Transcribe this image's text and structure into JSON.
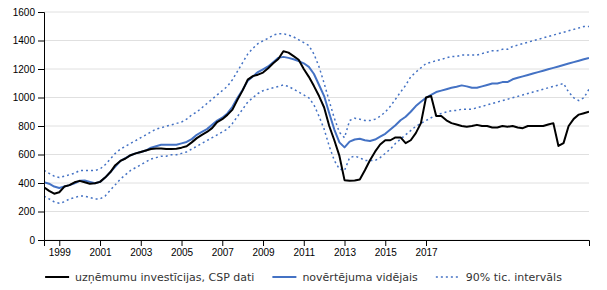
{
  "chart_data": {
    "type": "line",
    "x": [
      1998.25,
      1998.5,
      1998.75,
      1999,
      1999.25,
      1999.5,
      1999.75,
      2000,
      2000.25,
      2000.5,
      2000.75,
      2001,
      2001.25,
      2001.5,
      2001.75,
      2002,
      2002.25,
      2002.5,
      2002.75,
      2003,
      2003.25,
      2003.5,
      2003.75,
      2004,
      2004.25,
      2004.5,
      2004.75,
      2005,
      2005.25,
      2005.5,
      2005.75,
      2006,
      2006.25,
      2006.5,
      2006.75,
      2007,
      2007.25,
      2007.5,
      2007.75,
      2008,
      2008.25,
      2008.5,
      2008.75,
      2009,
      2009.25,
      2009.5,
      2009.75,
      2010,
      2010.25,
      2010.5,
      2010.75,
      2011,
      2011.25,
      2011.5,
      2011.75,
      2012,
      2012.25,
      2012.5,
      2012.75,
      2013,
      2013.25,
      2013.5,
      2013.75,
      2014,
      2014.25,
      2014.5,
      2014.75,
      2015,
      2015.25,
      2015.5,
      2015.75,
      2016,
      2016.25,
      2016.5,
      2016.75,
      2017,
      2017.25,
      2017.5,
      2017.75,
      2018,
      2018.25,
      2018.5,
      2018.75,
      2019,
      2019.25,
      2019.5,
      2019.75,
      2020,
      2020.25,
      2020.5,
      2020.75,
      2021,
      2021.25,
      2021.5,
      2021.75,
      2022,
      2022.25,
      2022.5,
      2022.75,
      2023,
      2023.25,
      2023.5,
      2023.75,
      2024,
      2024.25,
      2024.5,
      2024.75,
      2025
    ],
    "series": [
      {
        "name": "uzņēmumu investīcijas, CSP dati",
        "color": "#000000",
        "line_style": "solid",
        "values": [
          370,
          345,
          325,
          335,
          375,
          385,
          405,
          415,
          405,
          395,
          398,
          408,
          438,
          475,
          525,
          555,
          572,
          595,
          608,
          618,
          628,
          638,
          642,
          642,
          638,
          638,
          640,
          648,
          658,
          685,
          715,
          738,
          758,
          785,
          828,
          848,
          878,
          915,
          985,
          1050,
          1125,
          1150,
          1160,
          1175,
          1205,
          1240,
          1270,
          1325,
          1315,
          1290,
          1265,
          1200,
          1145,
          1080,
          1010,
          930,
          800,
          700,
          590,
          420,
          415,
          418,
          425,
          490,
          560,
          620,
          670,
          700,
          700,
          720,
          720,
          680,
          700,
          750,
          820,
          1000,
          1010,
          870,
          870,
          840,
          820,
          810,
          800,
          795,
          800,
          808,
          800,
          800,
          790,
          790,
          800,
          795,
          800,
          790,
          785,
          800,
          800,
          800,
          800,
          810,
          820,
          660,
          680,
          800,
          850,
          880,
          890,
          900
        ]
      },
      {
        "name": "novērtējuma vidējais",
        "color": "#4472C4",
        "line_style": "solid",
        "values": [
          405,
          395,
          375,
          365,
          375,
          385,
          398,
          415,
          418,
          408,
          398,
          408,
          438,
          475,
          515,
          555,
          575,
          595,
          608,
          618,
          628,
          648,
          658,
          668,
          668,
          668,
          668,
          678,
          688,
          708,
          738,
          758,
          778,
          808,
          838,
          858,
          888,
          935,
          998,
          1055,
          1118,
          1148,
          1178,
          1198,
          1218,
          1248,
          1278,
          1285,
          1278,
          1268,
          1255,
          1240,
          1215,
          1165,
          1088,
          1010,
          890,
          775,
          685,
          650,
          690,
          705,
          710,
          700,
          695,
          705,
          725,
          745,
          775,
          805,
          840,
          865,
          900,
          940,
          970,
          998,
          1018,
          1038,
          1048,
          1058,
          1068,
          1075,
          1085,
          1078,
          1068,
          1068,
          1078,
          1088,
          1098,
          1098,
          1108,
          1108,
          1128,
          1138,
          1148,
          1158,
          1168,
          1178,
          1188,
          1198,
          1208,
          1218,
          1228,
          1238,
          1248,
          1258,
          1268,
          1278
        ]
      },
      {
        "name": "90% tic. intervāls",
        "color": "#4472C4",
        "line_style": "dotted",
        "upper": [
          488,
          468,
          448,
          438,
          448,
          458,
          468,
          488,
          488,
          488,
          488,
          498,
          528,
          568,
          608,
          638,
          658,
          678,
          698,
          718,
          738,
          758,
          778,
          788,
          798,
          808,
          818,
          828,
          848,
          878,
          898,
          928,
          958,
          988,
          1018,
          1048,
          1078,
          1125,
          1185,
          1245,
          1305,
          1345,
          1378,
          1398,
          1415,
          1438,
          1448,
          1448,
          1438,
          1425,
          1405,
          1385,
          1365,
          1305,
          1215,
          1100,
          975,
          855,
          755,
          718,
          838,
          855,
          848,
          838,
          838,
          848,
          868,
          898,
          938,
          988,
          1038,
          1085,
          1145,
          1178,
          1208,
          1238,
          1248,
          1258,
          1268,
          1278,
          1288,
          1288,
          1298,
          1298,
          1298,
          1298,
          1308,
          1318,
          1328,
          1328,
          1338,
          1338,
          1358,
          1368,
          1378,
          1388,
          1398,
          1408,
          1418,
          1428,
          1438,
          1448,
          1458,
          1468,
          1478,
          1488,
          1498,
          1498
        ],
        "lower": [
          308,
          288,
          268,
          258,
          268,
          288,
          298,
          308,
          308,
          298,
          288,
          288,
          308,
          348,
          388,
          428,
          458,
          488,
          508,
          528,
          548,
          568,
          578,
          588,
          588,
          598,
          598,
          608,
          618,
          638,
          658,
          678,
          698,
          718,
          738,
          758,
          778,
          818,
          868,
          918,
          968,
          998,
          1028,
          1048,
          1058,
          1068,
          1078,
          1088,
          1078,
          1058,
          1038,
          1018,
          998,
          948,
          868,
          778,
          658,
          558,
          498,
          488,
          578,
          588,
          578,
          558,
          558,
          558,
          578,
          608,
          638,
          678,
          708,
          738,
          768,
          798,
          818,
          838,
          858,
          878,
          888,
          898,
          908,
          908,
          918,
          918,
          918,
          928,
          938,
          948,
          958,
          968,
          978,
          988,
          998,
          1008,
          1018,
          1028,
          1038,
          1048,
          1058,
          1068,
          1078,
          1088,
          1098,
          1038,
          998,
          978,
          998,
          1058
        ]
      }
    ],
    "xlim": [
      1998.25,
      2025
    ],
    "xticks": [
      1999,
      2001,
      2003,
      2005,
      2007,
      2009,
      2011,
      2013,
      2015,
      2017
    ],
    "ylim": [
      0,
      1600
    ],
    "yticks": [
      0,
      200,
      400,
      600,
      800,
      1000,
      1200,
      1400,
      1600
    ],
    "grid": true,
    "legend": "bottom"
  }
}
